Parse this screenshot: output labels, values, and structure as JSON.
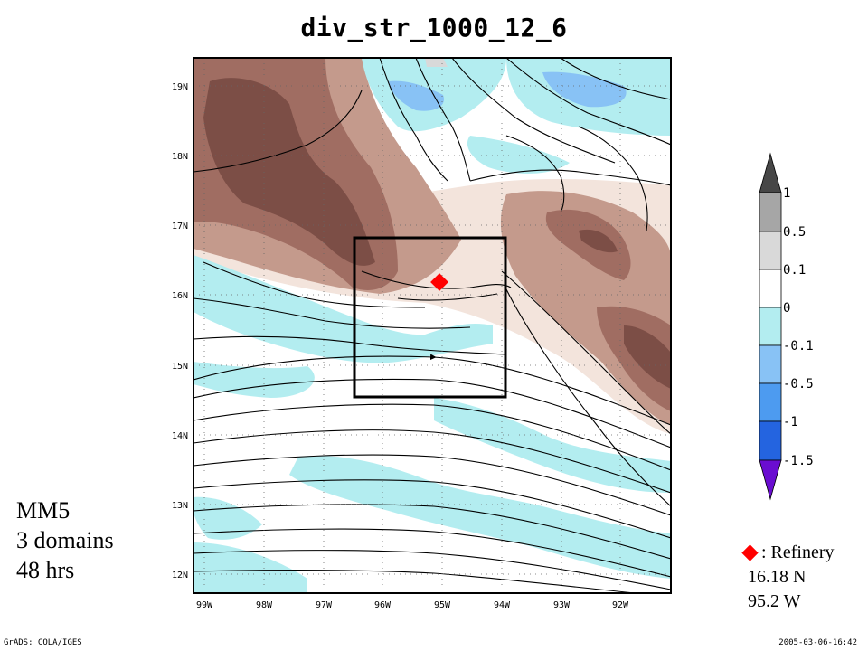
{
  "title": "div_str_1000_12_6",
  "map": {
    "lat_labels": [
      "19N",
      "18N",
      "17N",
      "16N",
      "15N",
      "14N",
      "13N",
      "12N"
    ],
    "lon_labels": [
      "99W",
      "98W",
      "97W",
      "96W",
      "95W",
      "94W",
      "93W",
      "92W"
    ],
    "inner_domain_box": "black square outlining innermost domain",
    "marker": {
      "label": "Refinery",
      "lat": 16.18,
      "lon": -95.2,
      "color": "#ff0000"
    }
  },
  "colorbar": {
    "levels": [
      "1",
      "0.5",
      "0.1",
      "0",
      "-0.1",
      "-0.5",
      "-1",
      "-1.5"
    ],
    "colors": [
      "#474747",
      "#a6a6a6",
      "#d9d9d9",
      "#ffffff",
      "#b3edf0",
      "#88c2f5",
      "#4d9bf0",
      "#2464e0",
      "#6a0dd1"
    ]
  },
  "model_info": {
    "line1": "MM5",
    "line2": "3 domains",
    "line3": "48 hrs"
  },
  "legend": {
    "label": ": Refinery",
    "lat": "16.18 N",
    "lon": "95.2 W"
  },
  "footer": {
    "left": "GrADS: COLA/IGES",
    "right": "2005-03-06-16:42"
  }
}
